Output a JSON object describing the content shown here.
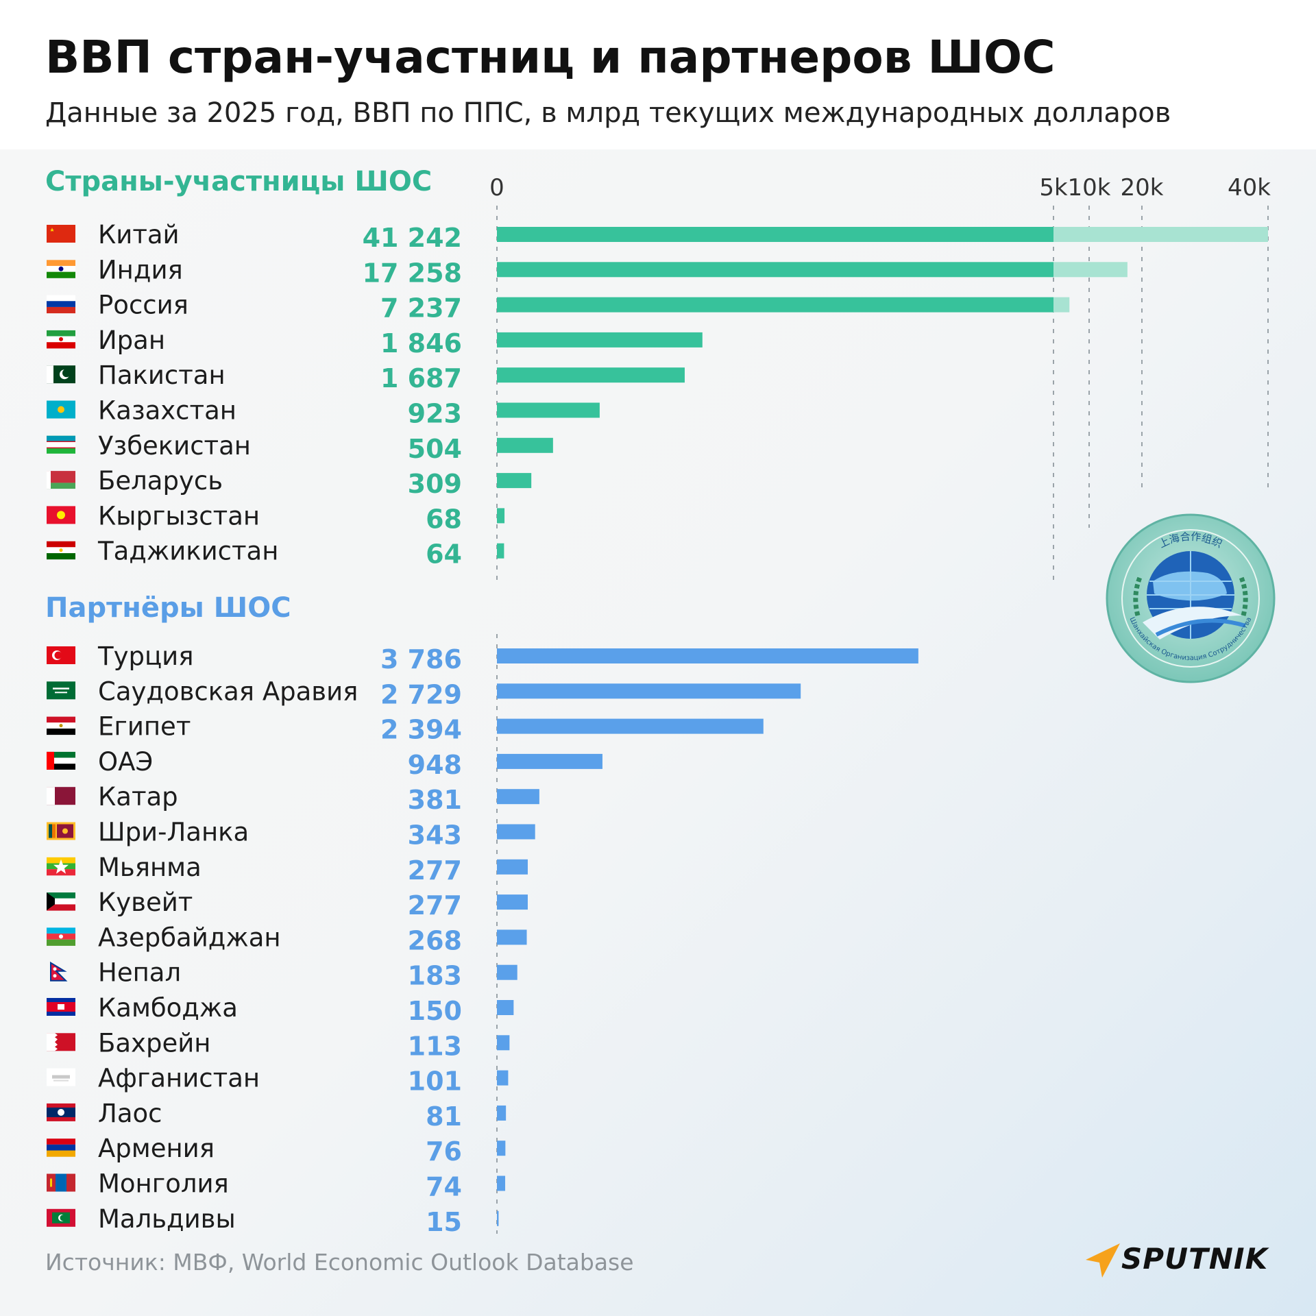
{
  "title": "ВВП стран-участниц и партнеров ШОС",
  "subtitle": "Данные за 2025 год, ВВП по ППС, в млрд текущих международных долларов",
  "colors": {
    "members": "#37c29b",
    "members_overflow": "#a8e3d2",
    "members_text": "#33b593",
    "partners": "#5aa0ea",
    "partners_text": "#5a9ee6",
    "brand_accent": "#f6a21c"
  },
  "axis_ticks": [
    "0",
    "5k",
    "10k",
    "20k",
    "40k"
  ],
  "sections": {
    "members_title": "Страны-участницы ШОС",
    "partners_title": "Партнёры ШОС"
  },
  "chart_data": {
    "type": "bar",
    "orientation": "horizontal",
    "scale": "linear to 5000, then compressed breaks at 10k, 20k, 40k",
    "ticks": [
      0,
      5000,
      10000,
      20000,
      40000
    ],
    "series": [
      {
        "name": "Страны-участницы ШОС",
        "categories": [
          "Китай",
          "Индия",
          "Россия",
          "Иран",
          "Пакистан",
          "Казахстан",
          "Узбекистан",
          "Беларусь",
          "Кыргызстан",
          "Таджикистан"
        ],
        "values": [
          41242,
          17258,
          7237,
          1846,
          1687,
          923,
          504,
          309,
          68,
          64
        ],
        "labels": [
          "41 242",
          "17 258",
          "7 237",
          "1 846",
          "1 687",
          "923",
          "504",
          "309",
          "68",
          "64"
        ],
        "flags": [
          "flag-china",
          "flag-india",
          "flag-russia",
          "flag-iran",
          "flag-pakistan",
          "flag-kazakhstan",
          "flag-uzbekistan",
          "flag-belarus",
          "flag-kyrgyzstan",
          "flag-tajikistan"
        ]
      },
      {
        "name": "Партнёры ШОС",
        "categories": [
          "Турция",
          "Саудовская Аравия",
          "Египет",
          "ОАЭ",
          "Катар",
          "Шри-Ланка",
          "Мьянма",
          "Кувейт",
          "Азербайджан",
          "Непал",
          "Камбоджа",
          "Бахрейн",
          "Афганистан",
          "Лаос",
          "Армения",
          "Монголия",
          "Мальдивы"
        ],
        "values": [
          3786,
          2729,
          2394,
          948,
          381,
          343,
          277,
          277,
          268,
          183,
          150,
          113,
          101,
          81,
          76,
          74,
          15
        ],
        "labels": [
          "3 786",
          "2 729",
          "2 394",
          "948",
          "381",
          "343",
          "277",
          "277",
          "268",
          "183",
          "150",
          "113",
          "101",
          "81",
          "76",
          "74",
          "15"
        ],
        "flags": [
          "flag-turkey",
          "flag-saudi-arabia",
          "flag-egypt",
          "flag-uae",
          "flag-qatar",
          "flag-sri-lanka",
          "flag-myanmar",
          "flag-kuwait",
          "flag-azerbaijan",
          "flag-nepal",
          "flag-cambodia",
          "flag-bahrain",
          "flag-afghanistan",
          "flag-laos",
          "flag-armenia",
          "flag-mongolia",
          "flag-maldives"
        ]
      }
    ]
  },
  "logo": {
    "name": "sco-emblem",
    "chinese_text": "上海合作组织",
    "russian_text": "Шанхайская Организация Сотрудничества"
  },
  "source": "Источник: МВФ, World Economic Outlook Database",
  "brand": "SPUTNIK"
}
